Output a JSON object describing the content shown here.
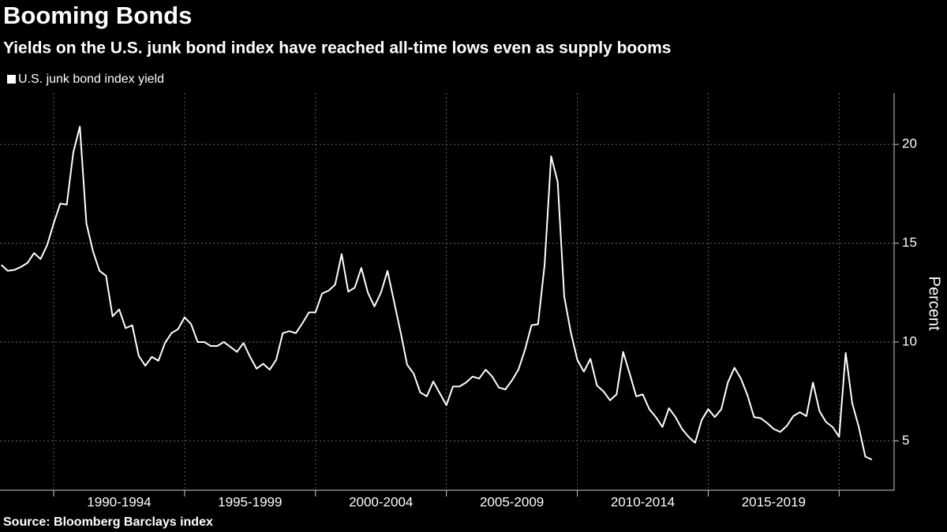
{
  "chart_data": {
    "type": "line",
    "title": "Booming Bonds",
    "subtitle": "Yields on the U.S. junk bond index have reached all-time lows even as supply booms",
    "source": "Source: Bloomberg Barclays index",
    "y_axis_label": "Percent",
    "x": [
      1988,
      1988.25,
      1988.5,
      1988.75,
      1989,
      1989.25,
      1989.5,
      1989.75,
      1990,
      1990.25,
      1990.5,
      1990.75,
      1991,
      1991.25,
      1991.5,
      1991.75,
      1992,
      1992.25,
      1992.5,
      1992.75,
      1993,
      1993.25,
      1993.5,
      1993.75,
      1994,
      1994.25,
      1994.5,
      1994.75,
      1995,
      1995.25,
      1995.5,
      1995.75,
      1996,
      1996.25,
      1996.5,
      1996.75,
      1997,
      1997.25,
      1997.5,
      1997.75,
      1998,
      1998.25,
      1998.5,
      1998.75,
      1999,
      1999.25,
      1999.5,
      1999.75,
      2000,
      2000.25,
      2000.5,
      2000.75,
      2001,
      2001.25,
      2001.5,
      2001.75,
      2002,
      2002.25,
      2002.5,
      2002.75,
      2003,
      2003.25,
      2003.5,
      2003.75,
      2004,
      2004.25,
      2004.5,
      2004.75,
      2005,
      2005.25,
      2005.5,
      2005.75,
      2006,
      2006.25,
      2006.5,
      2006.75,
      2007,
      2007.25,
      2007.5,
      2007.75,
      2008,
      2008.25,
      2008.5,
      2008.75,
      2009,
      2009.25,
      2009.5,
      2009.75,
      2010,
      2010.25,
      2010.5,
      2010.75,
      2011,
      2011.25,
      2011.5,
      2011.75,
      2012,
      2012.25,
      2012.5,
      2012.75,
      2013,
      2013.25,
      2013.5,
      2013.75,
      2014,
      2014.25,
      2014.5,
      2014.75,
      2015,
      2015.25,
      2015.5,
      2015.75,
      2016,
      2016.25,
      2016.5,
      2016.75,
      2017,
      2017.25,
      2017.5,
      2017.75,
      2018,
      2018.25,
      2018.5,
      2018.75,
      2019,
      2019.25,
      2019.5,
      2019.75,
      2020,
      2020.25,
      2020.5,
      2020.75,
      2021,
      2021.25
    ],
    "series": [
      {
        "name": "U.S. junk bond index yield",
        "color": "#ffffff",
        "values": [
          13.9,
          13.6,
          13.65,
          13.8,
          14.0,
          14.5,
          14.2,
          14.9,
          16.0,
          17.0,
          16.95,
          19.6,
          20.9,
          16.0,
          14.6,
          13.6,
          13.35,
          11.3,
          11.65,
          10.7,
          10.85,
          9.3,
          8.8,
          9.25,
          9.05,
          9.95,
          10.45,
          10.65,
          11.25,
          10.9,
          10.0,
          10.0,
          9.8,
          9.8,
          10.0,
          9.75,
          9.5,
          9.95,
          9.25,
          8.65,
          8.9,
          8.6,
          9.1,
          10.45,
          10.55,
          10.45,
          10.95,
          11.5,
          11.5,
          12.45,
          12.6,
          12.9,
          14.45,
          12.55,
          12.75,
          13.75,
          12.5,
          11.8,
          12.5,
          13.6,
          12.05,
          10.5,
          8.85,
          8.4,
          7.45,
          7.25,
          8.0,
          7.4,
          6.8,
          7.75,
          7.75,
          7.95,
          8.25,
          8.15,
          8.6,
          8.25,
          7.7,
          7.6,
          8.05,
          8.6,
          9.6,
          10.85,
          10.9,
          13.9,
          19.4,
          18.1,
          12.3,
          10.5,
          9.1,
          8.5,
          9.15,
          7.8,
          7.5,
          7.05,
          7.35,
          9.5,
          8.4,
          7.25,
          7.35,
          6.6,
          6.2,
          5.7,
          6.65,
          6.2,
          5.6,
          5.2,
          4.9,
          6.05,
          6.6,
          6.2,
          6.6,
          7.95,
          8.7,
          8.15,
          7.3,
          6.2,
          6.15,
          5.9,
          5.6,
          5.45,
          5.75,
          6.25,
          6.45,
          6.25,
          7.95,
          6.5,
          5.95,
          5.7,
          5.2,
          9.45,
          6.9,
          5.7,
          4.2,
          4.05
        ]
      }
    ],
    "xlim": [
      1987.95,
      2022.1
    ],
    "xticks": [
      {
        "value": 1990,
        "label": "1990-1994"
      },
      {
        "value": 1995,
        "label": "1995-1999"
      },
      {
        "value": 2000,
        "label": "2000-2004"
      },
      {
        "value": 2005,
        "label": "2005-2009"
      },
      {
        "value": 2010,
        "label": "2010-2014"
      },
      {
        "value": 2015,
        "label": "2015-2019"
      },
      {
        "value": 2020,
        "label": null
      }
    ],
    "ylim": [
      2.5,
      22.6
    ],
    "yticks": [
      5,
      10,
      15,
      20
    ],
    "grid": true,
    "legend": "top-left"
  }
}
